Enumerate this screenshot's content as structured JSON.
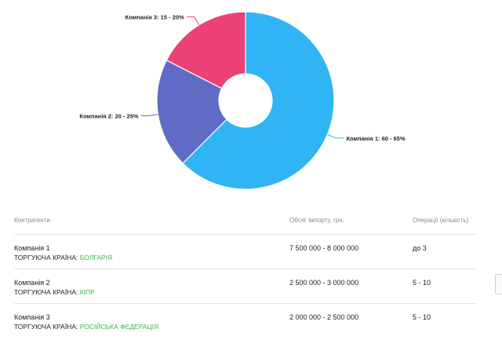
{
  "chart_data": {
    "type": "pie",
    "donut": true,
    "slices": [
      {
        "label": "Компанія 1: 60 - 65%",
        "value": 62.5,
        "color": "#2fb5f5"
      },
      {
        "label": "Компанія 2: 20 - 25%",
        "value": 20.0,
        "color": "#5f6bc4"
      },
      {
        "label": "Компанія 3: 15 - 20%",
        "value": 17.5,
        "color": "#ec4176"
      }
    ]
  },
  "table": {
    "headers": {
      "name": "Контрагенти",
      "volume": "Обсяг імпорту, грн.",
      "operations": "Операції (кількість)"
    },
    "country_prefix": "ТОРГУЮЧА КРАЇНА:",
    "rows": [
      {
        "company": "Компанія 1",
        "country": "БОЛГАРІЯ",
        "volume": "7 500 000 - 8 000 000",
        "operations": "до 3"
      },
      {
        "company": "Компанія 2",
        "country": "КІПР",
        "volume": "2 500 000 - 3 000 000",
        "operations": "5 - 10"
      },
      {
        "company": "Компанія 3",
        "country": "РОСІЙСЬКА ФЕДЕРАЦІЯ",
        "volume": "2 000 000 - 2 500 000",
        "operations": "5 - 10"
      }
    ]
  }
}
